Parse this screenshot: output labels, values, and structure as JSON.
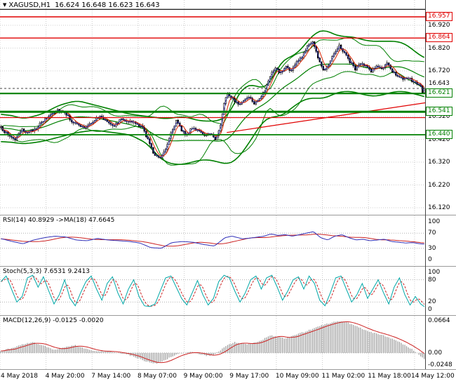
{
  "header": {
    "collapse_icon": "▼",
    "symbol": "XAGUSD,H1",
    "ohlc": "16.624 16.648 16.623 16.643"
  },
  "price_axis": {
    "labels": [
      "16.920",
      "16.820",
      "16.720",
      "16.620",
      "16.520",
      "16.420",
      "16.320",
      "16.220",
      "16.120"
    ],
    "values": [
      16.92,
      16.82,
      16.72,
      16.62,
      16.52,
      16.42,
      16.32,
      16.22,
      16.12
    ]
  },
  "time_axis": {
    "labels": [
      "4 May 2018",
      "4 May 20:00",
      "7 May 14:00",
      "8 May 07:00",
      "9 May 00:00",
      "9 May 17:00",
      "10 May 09:00",
      "11 May 02:00",
      "11 May 18:00",
      "14 May 12:00"
    ],
    "indices": [
      0,
      26,
      52,
      78,
      104,
      130,
      156,
      182,
      208,
      234
    ]
  },
  "panes": {
    "rsi": {
      "label": "RSI(14) 40.8929  ->MA(18) 47.6645",
      "axis": [
        {
          "t": "100",
          "v": 100
        },
        {
          "t": "70",
          "v": 70
        },
        {
          "t": "30",
          "v": 30
        },
        {
          "t": "0",
          "v": 0
        }
      ],
      "dashed": [
        70,
        30
      ]
    },
    "stoch": {
      "label": "Stoch(5,3,3) 7.6531 9.2413",
      "axis": [
        {
          "t": "100",
          "v": 100
        },
        {
          "t": "80",
          "v": 80
        },
        {
          "t": "20",
          "v": 20
        },
        {
          "t": "0",
          "v": 0
        }
      ],
      "dashed": [
        80,
        20
      ]
    },
    "macd": {
      "label": "MACD(12,26,9) -0.0125 -0.0020",
      "axis": [
        {
          "t": "0.0664",
          "v": 0.0664
        },
        {
          "t": "0.00",
          "v": 0
        },
        {
          "t": "-0.0248",
          "v": -0.0248
        }
      ],
      "dashed": [
        0
      ]
    }
  },
  "levels": {
    "resistance": [
      {
        "label": "16.957",
        "price": 16.957
      },
      {
        "label": "16.864",
        "price": 16.864
      }
    ],
    "support": [
      {
        "label": "16.621",
        "price": 16.621
      },
      {
        "label": "16.541",
        "price": 16.541
      },
      {
        "label": "16.440",
        "price": 16.44
      }
    ],
    "current": {
      "label": "16.643",
      "price": 16.643
    },
    "minor_red": 16.515,
    "black_line": 16.99,
    "red_trendline": [
      [
        128,
        16.45
      ],
      [
        240,
        16.58
      ]
    ]
  },
  "colors": {
    "up_candle": "#ffffff",
    "down_candle": "#000000",
    "bands": "#008000",
    "levels_red": "#e00000",
    "levels_green": "#008000",
    "rsi": "#3030b8",
    "rsi_ma": "#cc2222",
    "stoch": "#00a8a8",
    "stoch_signal": "#cc2222",
    "macd_hist": "#a0a0a0",
    "macd_signal": "#cc2222",
    "grid": "#cccccc",
    "ma_red": "#dd2200",
    "ma_blue": "#3333bb"
  },
  "chart_data": {
    "type": "candlestick",
    "symbol": "XAGUSD",
    "timeframe": "H1",
    "bars": 240,
    "ylim": [
      16.089,
      17.031
    ],
    "x_start": "4 May 2018",
    "x_end": "14 May 12:00",
    "ohlc_last": {
      "open": 16.624,
      "high": 16.648,
      "low": 16.623,
      "close": 16.643
    },
    "close_anchors": [
      [
        0,
        16.47
      ],
      [
        4,
        16.44
      ],
      [
        8,
        16.42
      ],
      [
        12,
        16.46
      ],
      [
        16,
        16.45
      ],
      [
        20,
        16.47
      ],
      [
        24,
        16.5
      ],
      [
        28,
        16.53
      ],
      [
        32,
        16.55
      ],
      [
        36,
        16.54
      ],
      [
        40,
        16.5
      ],
      [
        44,
        16.48
      ],
      [
        48,
        16.47
      ],
      [
        52,
        16.5
      ],
      [
        56,
        16.52
      ],
      [
        60,
        16.5
      ],
      [
        64,
        16.48
      ],
      [
        68,
        16.51
      ],
      [
        72,
        16.5
      ],
      [
        76,
        16.49
      ],
      [
        80,
        16.47
      ],
      [
        83,
        16.42
      ],
      [
        86,
        16.36
      ],
      [
        90,
        16.34
      ],
      [
        93,
        16.38
      ],
      [
        96,
        16.45
      ],
      [
        99,
        16.5
      ],
      [
        102,
        16.46
      ],
      [
        105,
        16.44
      ],
      [
        108,
        16.47
      ],
      [
        112,
        16.46
      ],
      [
        115,
        16.43
      ],
      [
        118,
        16.45
      ],
      [
        121,
        16.42
      ],
      [
        124,
        16.48
      ],
      [
        126,
        16.58
      ],
      [
        128,
        16.62
      ],
      [
        131,
        16.6
      ],
      [
        134,
        16.57
      ],
      [
        137,
        16.59
      ],
      [
        140,
        16.61
      ],
      [
        143,
        16.58
      ],
      [
        146,
        16.6
      ],
      [
        149,
        16.63
      ],
      [
        152,
        16.7
      ],
      [
        155,
        16.73
      ],
      [
        158,
        16.71
      ],
      [
        161,
        16.74
      ],
      [
        164,
        16.72
      ],
      [
        167,
        16.76
      ],
      [
        170,
        16.78
      ],
      [
        173,
        16.83
      ],
      [
        176,
        16.85
      ],
      [
        179,
        16.78
      ],
      [
        182,
        16.72
      ],
      [
        185,
        16.75
      ],
      [
        188,
        16.8
      ],
      [
        191,
        16.83
      ],
      [
        194,
        16.8
      ],
      [
        197,
        16.76
      ],
      [
        200,
        16.73
      ],
      [
        203,
        16.75
      ],
      [
        206,
        16.74
      ],
      [
        209,
        16.72
      ],
      [
        212,
        16.74
      ],
      [
        215,
        16.73
      ],
      [
        218,
        16.75
      ],
      [
        221,
        16.72
      ],
      [
        224,
        16.7
      ],
      [
        227,
        16.68
      ],
      [
        230,
        16.69
      ],
      [
        233,
        16.67
      ],
      [
        236,
        16.66
      ],
      [
        239,
        16.643
      ]
    ],
    "band_upper_anchors": [
      [
        0,
        16.53
      ],
      [
        10,
        16.51
      ],
      [
        20,
        16.53
      ],
      [
        30,
        16.57
      ],
      [
        40,
        16.59
      ],
      [
        50,
        16.57
      ],
      [
        60,
        16.55
      ],
      [
        70,
        16.53
      ],
      [
        80,
        16.52
      ],
      [
        90,
        16.51
      ],
      [
        100,
        16.52
      ],
      [
        110,
        16.5
      ],
      [
        120,
        16.5
      ],
      [
        126,
        16.53
      ],
      [
        130,
        16.6
      ],
      [
        134,
        16.65
      ],
      [
        140,
        16.66
      ],
      [
        145,
        16.64
      ],
      [
        150,
        16.68
      ],
      [
        155,
        16.76
      ],
      [
        160,
        16.78
      ],
      [
        165,
        16.8
      ],
      [
        170,
        16.85
      ],
      [
        175,
        16.89
      ],
      [
        180,
        16.9
      ],
      [
        185,
        16.88
      ],
      [
        190,
        16.87
      ],
      [
        195,
        16.87
      ],
      [
        200,
        16.86
      ],
      [
        205,
        16.85
      ],
      [
        210,
        16.85
      ],
      [
        215,
        16.85
      ],
      [
        220,
        16.85
      ],
      [
        225,
        16.84
      ],
      [
        230,
        16.81
      ],
      [
        235,
        16.78
      ],
      [
        239,
        16.77
      ]
    ],
    "band_lower_anchors": [
      [
        0,
        16.41
      ],
      [
        10,
        16.4
      ],
      [
        20,
        16.41
      ],
      [
        30,
        16.43
      ],
      [
        40,
        16.45
      ],
      [
        50,
        16.46
      ],
      [
        60,
        16.45
      ],
      [
        70,
        16.44
      ],
      [
        80,
        16.4
      ],
      [
        85,
        16.35
      ],
      [
        90,
        16.32
      ],
      [
        95,
        16.31
      ],
      [
        100,
        16.31
      ],
      [
        105,
        16.32
      ],
      [
        110,
        16.33
      ],
      [
        115,
        16.33
      ],
      [
        120,
        16.32
      ],
      [
        125,
        16.31
      ],
      [
        130,
        16.33
      ],
      [
        135,
        16.38
      ],
      [
        140,
        16.44
      ],
      [
        145,
        16.5
      ],
      [
        150,
        16.52
      ],
      [
        155,
        16.52
      ],
      [
        160,
        16.55
      ],
      [
        165,
        16.58
      ],
      [
        170,
        16.6
      ],
      [
        175,
        16.6
      ],
      [
        180,
        16.6
      ],
      [
        185,
        16.62
      ],
      [
        190,
        16.63
      ],
      [
        195,
        16.63
      ],
      [
        200,
        16.62
      ],
      [
        205,
        16.61
      ],
      [
        210,
        16.61
      ],
      [
        215,
        16.62
      ],
      [
        220,
        16.63
      ],
      [
        225,
        16.63
      ],
      [
        230,
        16.62
      ],
      [
        235,
        16.61
      ],
      [
        239,
        16.6
      ]
    ],
    "fast_band": {
      "period": 24,
      "deviation": 2
    },
    "rsi": {
      "anchors": [
        [
          0,
          55
        ],
        [
          6,
          48
        ],
        [
          12,
          42
        ],
        [
          18,
          52
        ],
        [
          24,
          58
        ],
        [
          30,
          62
        ],
        [
          36,
          60
        ],
        [
          42,
          52
        ],
        [
          48,
          50
        ],
        [
          54,
          56
        ],
        [
          60,
          52
        ],
        [
          66,
          50
        ],
        [
          72,
          48
        ],
        [
          78,
          44
        ],
        [
          84,
          32
        ],
        [
          90,
          30
        ],
        [
          96,
          45
        ],
        [
          102,
          48
        ],
        [
          108,
          46
        ],
        [
          114,
          40
        ],
        [
          120,
          36
        ],
        [
          126,
          58
        ],
        [
          130,
          62
        ],
        [
          136,
          55
        ],
        [
          142,
          58
        ],
        [
          148,
          62
        ],
        [
          152,
          68
        ],
        [
          156,
          64
        ],
        [
          160,
          66
        ],
        [
          164,
          62
        ],
        [
          168,
          66
        ],
        [
          172,
          70
        ],
        [
          176,
          74
        ],
        [
          180,
          58
        ],
        [
          184,
          52
        ],
        [
          188,
          62
        ],
        [
          192,
          66
        ],
        [
          196,
          58
        ],
        [
          200,
          52
        ],
        [
          204,
          54
        ],
        [
          208,
          50
        ],
        [
          212,
          52
        ],
        [
          216,
          54
        ],
        [
          220,
          48
        ],
        [
          224,
          46
        ],
        [
          228,
          44
        ],
        [
          232,
          45
        ],
        [
          236,
          42
        ],
        [
          239,
          40.9
        ]
      ],
      "last": 40.8929,
      "ma_period": 18,
      "ma_last": 47.6645
    },
    "stoch": {
      "anchors": [
        [
          0,
          75
        ],
        [
          3,
          90
        ],
        [
          6,
          55
        ],
        [
          9,
          20
        ],
        [
          12,
          35
        ],
        [
          15,
          85
        ],
        [
          18,
          92
        ],
        [
          21,
          60
        ],
        [
          24,
          88
        ],
        [
          27,
          50
        ],
        [
          30,
          15
        ],
        [
          33,
          40
        ],
        [
          36,
          80
        ],
        [
          39,
          30
        ],
        [
          42,
          10
        ],
        [
          45,
          45
        ],
        [
          48,
          75
        ],
        [
          51,
          90
        ],
        [
          54,
          55
        ],
        [
          57,
          25
        ],
        [
          60,
          70
        ],
        [
          63,
          88
        ],
        [
          66,
          45
        ],
        [
          69,
          15
        ],
        [
          72,
          55
        ],
        [
          75,
          80
        ],
        [
          78,
          35
        ],
        [
          81,
          10
        ],
        [
          84,
          8
        ],
        [
          87,
          15
        ],
        [
          90,
          50
        ],
        [
          93,
          85
        ],
        [
          96,
          90
        ],
        [
          99,
          60
        ],
        [
          102,
          30
        ],
        [
          105,
          12
        ],
        [
          108,
          45
        ],
        [
          111,
          78
        ],
        [
          114,
          40
        ],
        [
          117,
          12
        ],
        [
          120,
          30
        ],
        [
          123,
          75
        ],
        [
          126,
          92
        ],
        [
          129,
          85
        ],
        [
          132,
          50
        ],
        [
          135,
          20
        ],
        [
          138,
          45
        ],
        [
          141,
          80
        ],
        [
          144,
          90
        ],
        [
          147,
          55
        ],
        [
          150,
          85
        ],
        [
          153,
          92
        ],
        [
          156,
          60
        ],
        [
          159,
          25
        ],
        [
          162,
          50
        ],
        [
          165,
          80
        ],
        [
          168,
          88
        ],
        [
          171,
          55
        ],
        [
          174,
          90
        ],
        [
          177,
          70
        ],
        [
          180,
          25
        ],
        [
          183,
          10
        ],
        [
          186,
          45
        ],
        [
          189,
          85
        ],
        [
          192,
          90
        ],
        [
          195,
          55
        ],
        [
          198,
          20
        ],
        [
          201,
          40
        ],
        [
          204,
          70
        ],
        [
          207,
          30
        ],
        [
          210,
          55
        ],
        [
          213,
          80
        ],
        [
          216,
          45
        ],
        [
          219,
          15
        ],
        [
          222,
          60
        ],
        [
          225,
          85
        ],
        [
          228,
          40
        ],
        [
          231,
          12
        ],
        [
          234,
          35
        ],
        [
          237,
          15
        ],
        [
          239,
          7.7
        ]
      ],
      "last": 7.6531,
      "signal_last": 9.2413
    },
    "macd": {
      "hist_anchors": [
        [
          0,
          0.004
        ],
        [
          6,
          0.01
        ],
        [
          12,
          0.018
        ],
        [
          18,
          0.022
        ],
        [
          24,
          0.015
        ],
        [
          30,
          0.006
        ],
        [
          36,
          0.012
        ],
        [
          42,
          0.016
        ],
        [
          48,
          0.008
        ],
        [
          54,
          0.003
        ],
        [
          60,
          0.004
        ],
        [
          66,
          0.0
        ],
        [
          72,
          -0.004
        ],
        [
          78,
          -0.012
        ],
        [
          84,
          -0.02
        ],
        [
          88,
          -0.022
        ],
        [
          92,
          -0.016
        ],
        [
          96,
          -0.008
        ],
        [
          100,
          -0.002
        ],
        [
          104,
          0.0
        ],
        [
          108,
          0.002
        ],
        [
          112,
          -0.002
        ],
        [
          116,
          -0.006
        ],
        [
          120,
          -0.004
        ],
        [
          124,
          0.006
        ],
        [
          128,
          0.016
        ],
        [
          132,
          0.022
        ],
        [
          136,
          0.02
        ],
        [
          140,
          0.018
        ],
        [
          144,
          0.022
        ],
        [
          148,
          0.028
        ],
        [
          152,
          0.036
        ],
        [
          156,
          0.034
        ],
        [
          160,
          0.03
        ],
        [
          164,
          0.034
        ],
        [
          168,
          0.04
        ],
        [
          172,
          0.044
        ],
        [
          176,
          0.05
        ],
        [
          180,
          0.056
        ],
        [
          184,
          0.06
        ],
        [
          188,
          0.064
        ],
        [
          192,
          0.066
        ],
        [
          196,
          0.062
        ],
        [
          200,
          0.056
        ],
        [
          204,
          0.05
        ],
        [
          208,
          0.044
        ],
        [
          212,
          0.04
        ],
        [
          216,
          0.036
        ],
        [
          220,
          0.03
        ],
        [
          224,
          0.024
        ],
        [
          228,
          0.016
        ],
        [
          232,
          0.008
        ],
        [
          236,
          -0.004
        ],
        [
          239,
          -0.0125
        ]
      ],
      "last": -0.0125,
      "signal_last": -0.002
    }
  }
}
